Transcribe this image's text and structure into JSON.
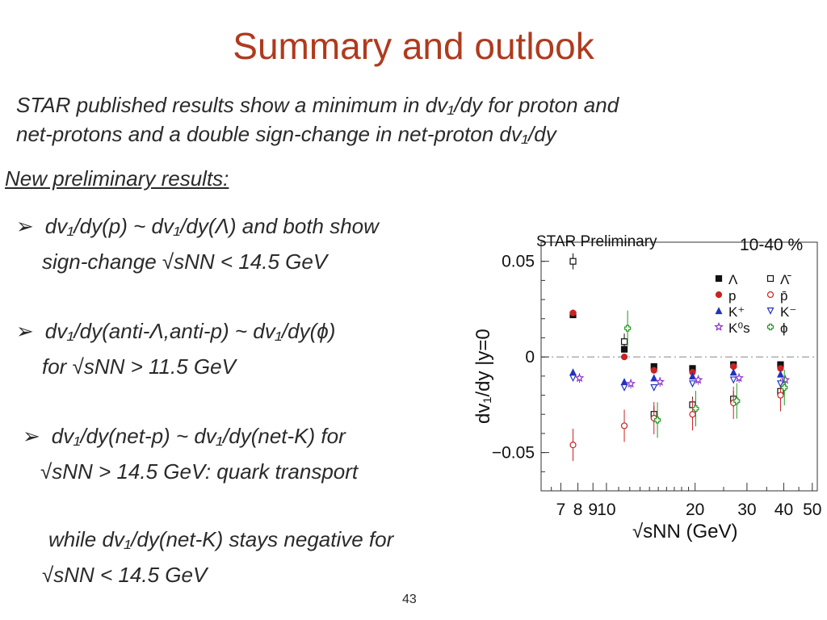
{
  "slide": {
    "title": "Summary and outlook",
    "intro_line1": "STAR published results show a minimum in dv₁/dy for proton and",
    "intro_line2": "net-protons and a double sign-change in net-proton dv₁/dy",
    "section_heading": "New preliminary results:",
    "bullets": [
      {
        "arrow": "➢",
        "line1": "dv₁/dy(p) ~ dv₁/dy(Λ) and both show",
        "line2": "sign-change √sNN < 14.5 GeV"
      },
      {
        "arrow": "➢",
        "line1": "dv₁/dy(anti-Λ,anti-p) ~ dv₁/dy(ϕ)",
        "line2": "for √sNN > 11.5 GeV"
      },
      {
        "arrow": "➢",
        "line1": "dv₁/dy(net-p) ~ dv₁/dy(net-K) for",
        "line2": "√sNN > 14.5 GeV: quark transport"
      }
    ],
    "note_line1": "while dv₁/dy(net-K) stays negative for",
    "note_line2": "√sNN < 14.5 GeV",
    "page_number": "43"
  },
  "chart_data": {
    "type": "scatter",
    "annotation": "STAR Preliminary",
    "centrality": "10-40 %",
    "xlabel": "√sNN (GeV)",
    "ylabel": "dv₁/dy |y=0",
    "xscale": "log",
    "xlim": [
      6,
      52
    ],
    "ylim": [
      -0.07,
      0.06
    ],
    "xticks": [
      7,
      8,
      9,
      10,
      20,
      30,
      40,
      50
    ],
    "xtick_labels": [
      "7",
      "8",
      "9",
      "10",
      "20",
      "30",
      "40",
      "50"
    ],
    "yticks": [
      0.05,
      0,
      -0.05
    ],
    "ytick_labels": [
      "0.05",
      "0",
      "−0.05"
    ],
    "legend_position": "top-right",
    "series": [
      {
        "name": "Λ",
        "marker": "square-filled",
        "color": "#111111",
        "x": [
          7.7,
          11.5,
          14.5,
          19.6,
          27,
          39
        ],
        "y": [
          0.022,
          0.004,
          -0.005,
          -0.006,
          -0.004,
          -0.004
        ]
      },
      {
        "name": "Λ̄",
        "marker": "square-open",
        "color": "#111111",
        "x": [
          7.7,
          11.5,
          14.5,
          19.6,
          27,
          39
        ],
        "y": [
          0.05,
          0.008,
          -0.03,
          -0.025,
          -0.022,
          -0.018
        ]
      },
      {
        "name": "p",
        "marker": "circle-filled",
        "color": "#cc2222",
        "x": [
          7.7,
          11.5,
          14.5,
          19.6,
          27,
          39
        ],
        "y": [
          0.023,
          0.0,
          -0.007,
          -0.008,
          -0.005,
          -0.006
        ]
      },
      {
        "name": "p̄",
        "marker": "circle-open",
        "color": "#cc2222",
        "x": [
          7.7,
          11.5,
          14.5,
          19.6,
          27,
          39
        ],
        "y": [
          -0.046,
          -0.036,
          -0.032,
          -0.03,
          -0.024,
          -0.02
        ]
      },
      {
        "name": "K⁺",
        "marker": "triangle-up-filled",
        "color": "#2233bb",
        "x": [
          7.7,
          11.5,
          14.5,
          19.6,
          27,
          39
        ],
        "y": [
          -0.008,
          -0.013,
          -0.011,
          -0.01,
          -0.008,
          -0.009
        ]
      },
      {
        "name": "K⁻",
        "marker": "triangle-down-open",
        "color": "#2233bb",
        "x": [
          7.7,
          11.5,
          14.5,
          19.6,
          27,
          39
        ],
        "y": [
          -0.011,
          -0.016,
          -0.016,
          -0.014,
          -0.012,
          -0.014
        ]
      },
      {
        "name": "K⁰s",
        "marker": "star-open",
        "color": "#8833cc",
        "x": [
          8.1,
          12.1,
          15.2,
          20.5,
          28.2,
          40.5
        ],
        "y": [
          -0.011,
          -0.014,
          -0.013,
          -0.012,
          -0.011,
          -0.012
        ]
      },
      {
        "name": "ϕ",
        "marker": "cross-open",
        "color": "#229922",
        "x": [
          11.8,
          14.9,
          20.1,
          27.7,
          40.2
        ],
        "y": [
          0.015,
          -0.033,
          -0.027,
          -0.023,
          -0.016
        ]
      }
    ]
  }
}
